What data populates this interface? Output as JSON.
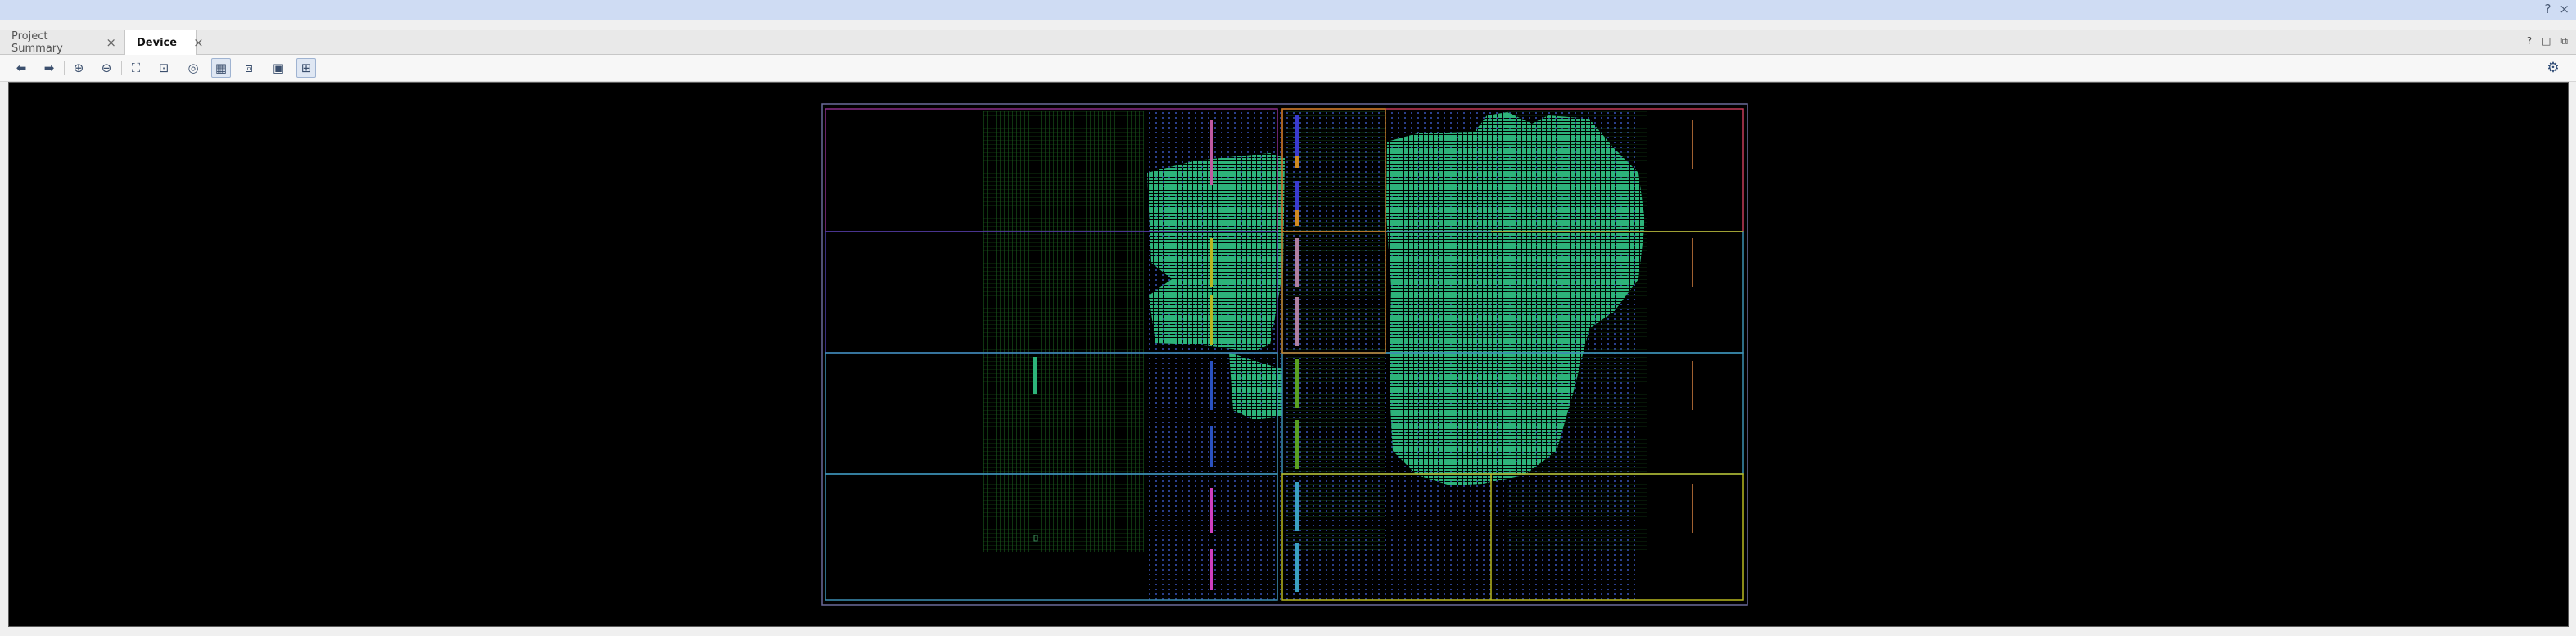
{
  "tabs": [
    {
      "label": "Project Summary",
      "active": false
    },
    {
      "label": "Device",
      "active": true
    }
  ],
  "tab_close_glyph": "×",
  "window_controls": {
    "help": "?",
    "close": "×"
  },
  "panel_controls": {
    "help": "?",
    "restore": "□",
    "maximize": "⧉"
  },
  "toolbar": {
    "buttons": [
      {
        "name": "back-icon",
        "glyph": "⬅"
      },
      {
        "name": "forward-icon",
        "glyph": "➡"
      },
      {
        "name": "zoom-in-icon",
        "glyph": "⊕"
      },
      {
        "name": "zoom-out-icon",
        "glyph": "⊖"
      },
      {
        "name": "zoom-fit-icon",
        "glyph": "⛶"
      },
      {
        "name": "zoom-area-icon",
        "glyph": "⊡"
      },
      {
        "name": "auto-fit-selection-icon",
        "glyph": "◎"
      },
      {
        "name": "routing-resources-icon",
        "glyph": "▦"
      },
      {
        "name": "pblock-icon",
        "glyph": "⧈"
      },
      {
        "name": "create-pblock-icon",
        "glyph": "▣"
      },
      {
        "name": "draw-pblock-icon",
        "glyph": "⊞"
      }
    ],
    "settings_glyph": "⚙",
    "colors": {
      "icon": "#3b4f6d",
      "toggle_bg": "#dfe7f3"
    }
  },
  "device_view": {
    "background": "#000000",
    "clock_region_colors": [
      "#8a2d8a",
      "#2f5fa8",
      "#3c8fb4",
      "#b8b820",
      "#c43a5a",
      "#a86020"
    ],
    "cell_color": "#2db37a"
  }
}
